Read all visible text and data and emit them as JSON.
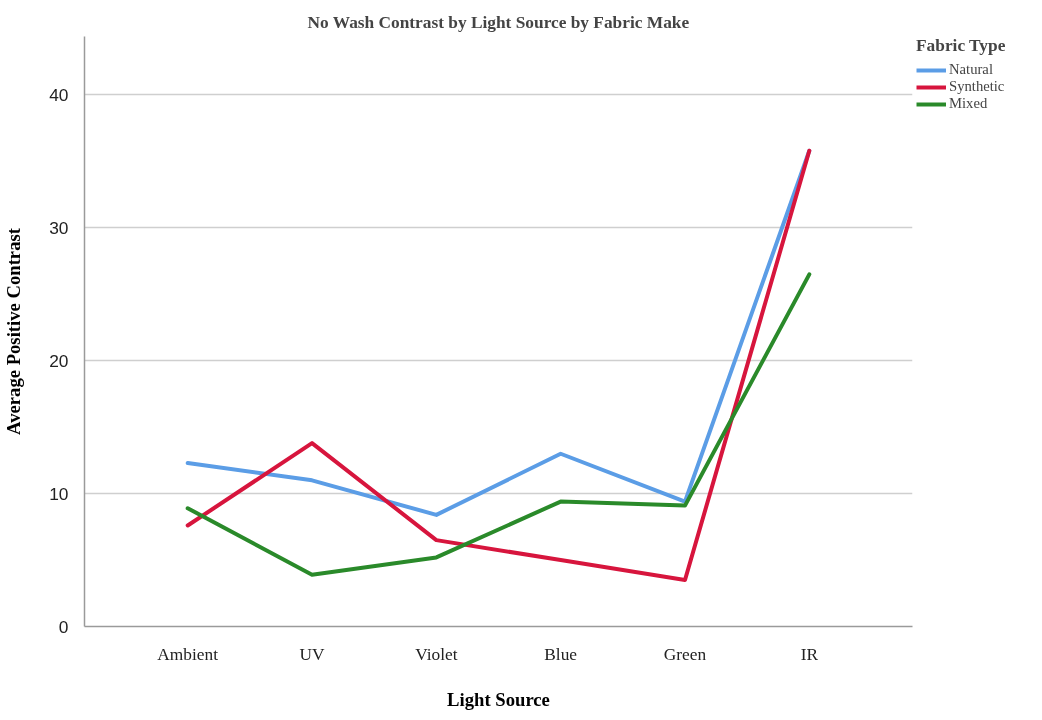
{
  "chart_data": {
    "type": "line",
    "title": "No Wash Contrast by Light Source by Fabric Make",
    "xlabel": "Light Source",
    "ylabel": "Average Positive Contrast",
    "legend_title": "Fabric Type",
    "categories": [
      "Ambient",
      "UV",
      "Violet",
      "Blue",
      "Green",
      "IR"
    ],
    "series": [
      {
        "name": "Natural",
        "color": "#5b9de6",
        "values": [
          12.3,
          11.0,
          8.4,
          13.0,
          9.4,
          35.8
        ]
      },
      {
        "name": "Synthetic",
        "color": "#d7153d",
        "values": [
          7.6,
          13.8,
          6.5,
          5.0,
          3.5,
          35.8
        ]
      },
      {
        "name": "Mixed",
        "color": "#2a8a2a",
        "values": [
          8.9,
          3.9,
          5.2,
          9.4,
          9.1,
          26.5
        ]
      }
    ],
    "ylim": [
      0,
      44.4
    ],
    "yticks": [
      0,
      10,
      20,
      30,
      40
    ],
    "grid": "y",
    "legend": "top right",
    "marker": "none",
    "line_style": "solid"
  }
}
